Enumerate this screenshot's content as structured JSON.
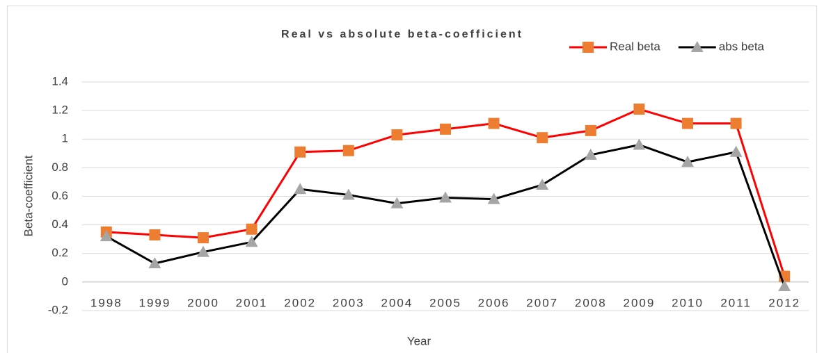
{
  "chart_data": {
    "type": "line",
    "title": "Real vs absolute beta-coefficient",
    "x_label": "Year",
    "y_label": "Beta-coefficient",
    "categories": [
      "1998",
      "1999",
      "2000",
      "2001",
      "2002",
      "2003",
      "2004",
      "2005",
      "2006",
      "2007",
      "2008",
      "2009",
      "2010",
      "2011",
      "2012"
    ],
    "series": [
      {
        "name": "Real beta",
        "color": "#ff0000",
        "marker": "square",
        "marker_color": "#ed7d31",
        "values": [
          0.35,
          0.33,
          0.31,
          0.37,
          0.91,
          0.92,
          1.03,
          1.07,
          1.11,
          1.01,
          1.06,
          1.21,
          1.11,
          1.11,
          0.04
        ]
      },
      {
        "name": "abs beta",
        "color": "#000000",
        "marker": "triangle",
        "marker_color": "#a5a5a5",
        "values": [
          0.32,
          0.13,
          0.21,
          0.28,
          0.65,
          0.61,
          0.55,
          0.59,
          0.58,
          0.68,
          0.89,
          0.96,
          0.84,
          0.91,
          -0.03
        ]
      }
    ],
    "ylim": [
      -0.2,
      1.4
    ],
    "yticks": [
      -0.2,
      0,
      0.2,
      0.4,
      0.6,
      0.8,
      1,
      1.2,
      1.4
    ],
    "grid": true,
    "legend_position": "top-right"
  }
}
